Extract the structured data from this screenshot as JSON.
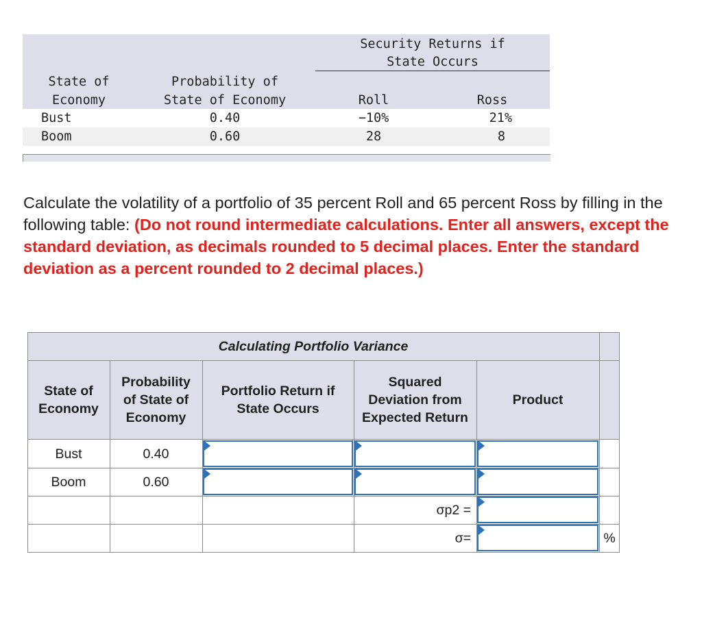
{
  "top_table": {
    "security_header_line1": "Security Returns if",
    "security_header_line2": "State Occurs",
    "col_state_line1": "State of",
    "col_state_line2": "Economy",
    "col_prob_line1": "Probability of",
    "col_prob_line2": "State of Economy",
    "col_roll": "Roll",
    "col_ross": "Ross",
    "rows": [
      {
        "state": "Bust",
        "prob": "0.40",
        "roll": "−10%",
        "ross": "21%"
      },
      {
        "state": "Boom",
        "prob": "0.60",
        "roll": "28",
        "ross": "8"
      }
    ]
  },
  "question": {
    "plain": "Calculate the volatility of a portfolio of 35 percent Roll and 65 percent Ross by filling in the following table: ",
    "emphasis": "(Do not round intermediate calculations. Enter all answers, except the standard deviation, as decimals rounded to 5 decimal places. Enter the standard deviation as a percent rounded to 2 decimal places.)"
  },
  "variance_table": {
    "title": "Calculating Portfolio Variance",
    "headers": {
      "state": "State of Economy",
      "prob": "Probability of State of Economy",
      "ret": "Portfolio Return if State Occurs",
      "sqdev": "Squared Deviation from Expected Return",
      "product": "Product"
    },
    "rows": [
      {
        "state": "Bust",
        "prob": "0.40"
      },
      {
        "state": "Boom",
        "prob": "0.60"
      }
    ],
    "variance_label": "σp2 =",
    "sd_label": "σ=",
    "percent_unit": "%"
  },
  "colors": {
    "header_bg": "#dcdfea",
    "input_border": "#2e72b8",
    "emphasis_red": "#e0211c"
  }
}
